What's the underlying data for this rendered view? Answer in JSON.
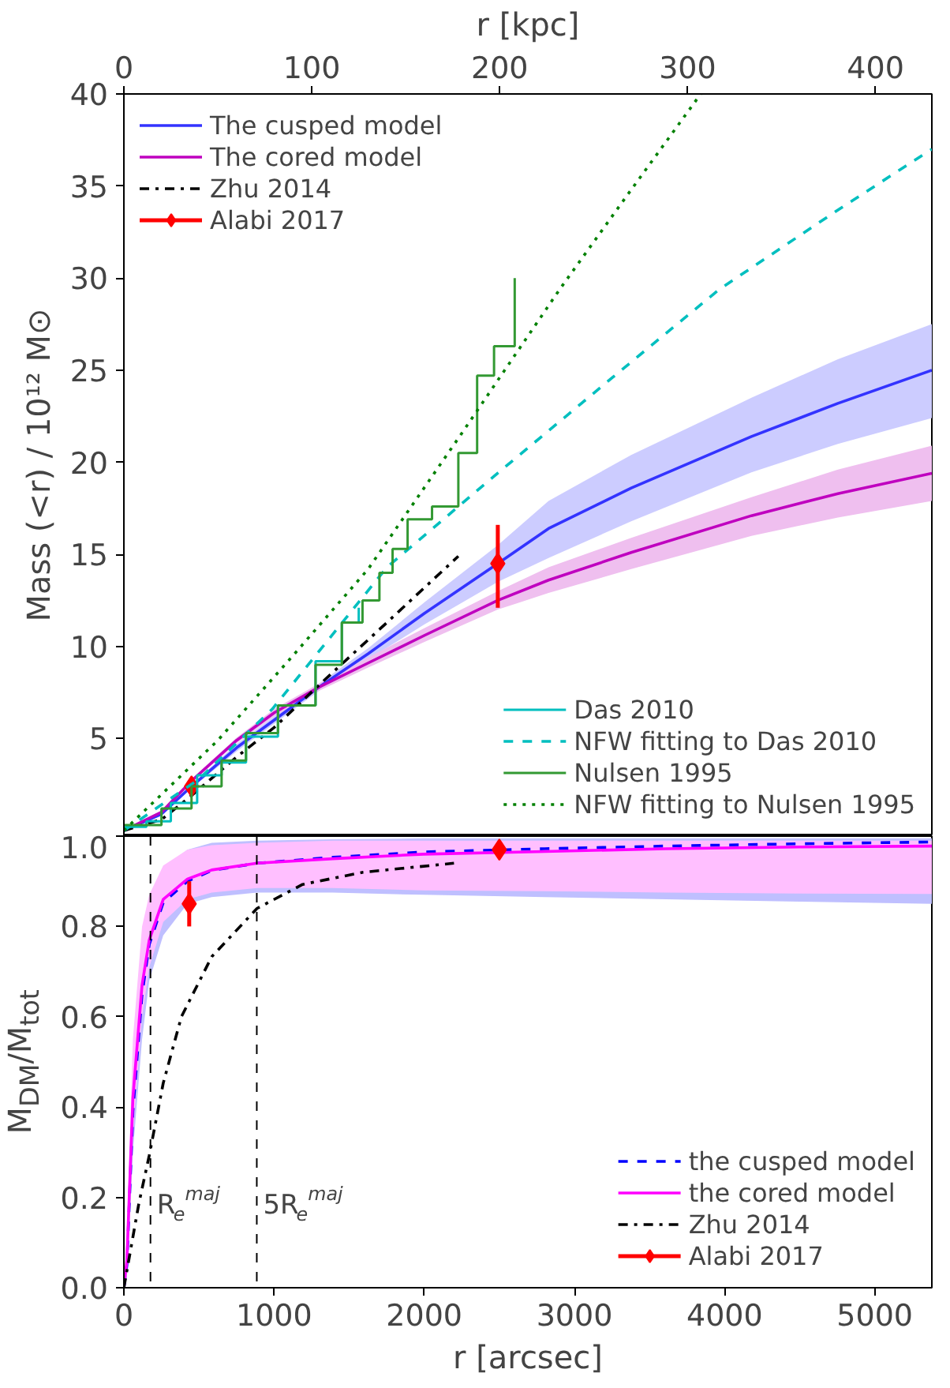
{
  "chart_data": [
    {
      "type": "line",
      "xlabel": "r [kpc]",
      "ylabel": "Mass (<r) / 10¹² M⊙",
      "xlim": [
        0,
        430
      ],
      "xticks": [
        0,
        100,
        200,
        300,
        400
      ],
      "ylim": [
        -0.3,
        40
      ],
      "yticks": [
        5,
        10,
        15,
        20,
        25,
        30,
        35,
        40
      ],
      "legend": [
        "top left",
        "bottom right"
      ],
      "series": [
        {
          "name": "The cusped model",
          "color": "#3333ff",
          "line_style": "solid",
          "x": [
            0,
            20,
            36,
            60,
            80,
            104,
            130,
            160,
            199,
            226,
            270,
            334,
            380,
            430
          ],
          "values": [
            0,
            0.9,
            2.4,
            4.5,
            6.0,
            7.8,
            9.6,
            11.8,
            14.5,
            16.4,
            18.6,
            21.4,
            23.2,
            25.0
          ],
          "lower": [
            0,
            0.85,
            2.3,
            4.3,
            5.8,
            7.6,
            9.3,
            11.2,
            13.5,
            14.8,
            16.8,
            19.45,
            21.0,
            22.4
          ],
          "upper": [
            0,
            0.95,
            2.5,
            4.7,
            6.2,
            8.0,
            9.9,
            12.4,
            15.5,
            17.9,
            20.4,
            23.5,
            25.6,
            27.5
          ]
        },
        {
          "name": "The cored model",
          "color": "#bf00bf",
          "line_style": "solid",
          "x": [
            0,
            20,
            36,
            60,
            80,
            104,
            130,
            160,
            199,
            226,
            270,
            334,
            380,
            430
          ],
          "values": [
            0,
            1.0,
            2.7,
            4.9,
            6.4,
            7.8,
            9.1,
            10.6,
            12.5,
            13.6,
            15.1,
            17.1,
            18.3,
            19.4
          ],
          "lower": [
            0,
            0.95,
            2.6,
            4.75,
            6.2,
            7.6,
            8.85,
            10.25,
            12.0,
            12.9,
            14.2,
            16.0,
            17.0,
            17.9
          ],
          "upper": [
            0,
            1.05,
            2.8,
            5.05,
            6.6,
            8.0,
            9.4,
            11.0,
            13.0,
            14.3,
            15.9,
            18.1,
            19.6,
            20.9
          ]
        },
        {
          "name": "Zhu 2014",
          "color": "#000000",
          "line_style": "dashdot",
          "x": [
            0,
            20,
            36,
            60,
            80,
            107,
            140,
            178
          ],
          "values": [
            0,
            0.6,
            1.9,
            4.0,
            5.6,
            8.2,
            11.3,
            14.9
          ]
        },
        {
          "name": "Alabi 2017",
          "type": "scatter",
          "marker": "diamond",
          "color": "#ff0000",
          "x": [
            36,
            199
          ],
          "values": [
            2.4,
            14.5
          ],
          "errors": [
            [
              2.1,
              2.7
            ],
            [
              12.1,
              16.6
            ]
          ]
        },
        {
          "name": "Das 2010",
          "type": "step",
          "color": "#00bfbf",
          "line_style": "solid",
          "x": [
            0,
            12,
            25,
            39,
            52,
            65,
            82,
            102,
            116,
            125
          ],
          "values": [
            0.2,
            0.5,
            1.5,
            3.0,
            3.7,
            5.1,
            6.8,
            9.2,
            11.3,
            12.1
          ]
        },
        {
          "name": "NFW fitting to Das 2010",
          "color": "#00bfbf",
          "line_style": "dashed",
          "x": [
            0,
            40,
            79,
            140,
            200,
            260,
            317,
            380,
            430
          ],
          "values": [
            0,
            2.8,
            6.6,
            14.3,
            19.5,
            24.6,
            29.4,
            33.7,
            37.0
          ]
        },
        {
          "name": "Nulsen 1995",
          "type": "step",
          "color": "#339933",
          "line_style": "solid",
          "x": [
            0,
            20,
            36,
            52,
            65,
            82,
            102,
            116,
            127,
            136,
            143,
            151,
            164,
            178,
            188,
            197,
            208
          ],
          "values": [
            0.3,
            1.2,
            2.4,
            3.8,
            5.3,
            6.8,
            9.0,
            11.3,
            12.5,
            14.0,
            15.3,
            16.9,
            17.6,
            20.5,
            24.7,
            26.3,
            30
          ]
        },
        {
          "name": "NFW fitting to Nulsen 1995",
          "color": "#008000",
          "line_style": "dotted",
          "x": [
            0,
            50,
            90,
            130,
            180,
            232,
            270,
            307
          ],
          "values": [
            0,
            4.9,
            9.5,
            14.2,
            21.6,
            29.4,
            34.8,
            40
          ]
        }
      ]
    },
    {
      "type": "line",
      "xlabel": "r [arcsec]",
      "ylabel": "M$_{DM}$/M$_{tot}$",
      "xlim": [
        0,
        5380
      ],
      "xticks": [
        0,
        1000,
        2000,
        3000,
        4000,
        5000
      ],
      "ylim": [
        0,
        1
      ],
      "yticks": [
        {
          "value": 0,
          "label": "0.0"
        },
        {
          "value": 0.2,
          "label": "0.2"
        },
        {
          "value": 0.4,
          "label": "0.4"
        },
        {
          "value": 0.6,
          "label": "0.6"
        },
        {
          "value": 0.8,
          "label": "0.8"
        },
        {
          "value": 1,
          "label": "1.0"
        }
      ],
      "legend": [
        "bottom right"
      ],
      "ref_lines": [
        {
          "axis": "x",
          "value": 177,
          "label": "R$_{e}$$^{maj}$",
          "color": "#000000",
          "line_style": "dashed"
        },
        {
          "axis": "x",
          "value": 885,
          "label": "5R$_{e}$$^{maj}$",
          "color": "#000000",
          "line_style": "dashed"
        }
      ],
      "series": [
        {
          "name": "the cusped model",
          "color": "#0000ff",
          "line_style": "dashed",
          "x": [
            0,
            20,
            60,
            121,
            169,
            262,
            423,
            585,
            887,
            1391,
            1996,
            2802,
            3609,
            4500,
            5380
          ],
          "values": [
            0,
            0.05,
            0.39,
            0.65,
            0.76,
            0.853,
            0.9,
            0.924,
            0.94,
            0.953,
            0.965,
            0.972,
            0.978,
            0.983,
            0.987
          ],
          "lower": [
            0,
            0.02,
            0.3,
            0.55,
            0.68,
            0.78,
            0.85,
            0.865,
            0.875,
            0.875,
            0.87,
            0.865,
            0.86,
            0.855,
            0.85
          ],
          "upper": [
            0,
            0.1,
            0.5,
            0.78,
            0.86,
            0.93,
            0.97,
            0.985,
            0.99,
            0.993,
            0.995,
            0.995,
            0.995,
            0.995,
            0.995
          ]
        },
        {
          "name": "the cored model",
          "color": "#ff00ff",
          "line_style": "solid",
          "x": [
            0,
            20,
            60,
            121,
            169,
            262,
            423,
            585,
            887,
            1391,
            1996,
            2802,
            3609,
            4500,
            5380
          ],
          "values": [
            0,
            0.06,
            0.42,
            0.67,
            0.77,
            0.86,
            0.905,
            0.925,
            0.94,
            0.95,
            0.96,
            0.966,
            0.972,
            0.976,
            0.978
          ],
          "lower": [
            0,
            0.03,
            0.34,
            0.6,
            0.71,
            0.81,
            0.86,
            0.875,
            0.885,
            0.885,
            0.88,
            0.878,
            0.875,
            0.873,
            0.872
          ],
          "upper": [
            0,
            0.12,
            0.55,
            0.8,
            0.87,
            0.935,
            0.97,
            0.98,
            0.985,
            0.99,
            0.99,
            0.99,
            0.99,
            0.99,
            0.99
          ]
        },
        {
          "name": "Zhu 2014",
          "color": "#000000",
          "line_style": "dashdot",
          "x": [
            0,
            100,
            169,
            262,
            383,
            585,
            887,
            1190,
            1593,
            2198
          ],
          "values": [
            0,
            0.187,
            0.293,
            0.453,
            0.6,
            0.733,
            0.84,
            0.893,
            0.92,
            0.94
          ]
        },
        {
          "name": "Alabi 2017",
          "type": "scatter",
          "marker": "diamond",
          "color": "#ff0000",
          "x": [
            435,
            2500
          ],
          "values": [
            0.85,
            0.97
          ],
          "errors": [
            [
              0.8,
              0.9
            ],
            null
          ]
        }
      ]
    }
  ]
}
